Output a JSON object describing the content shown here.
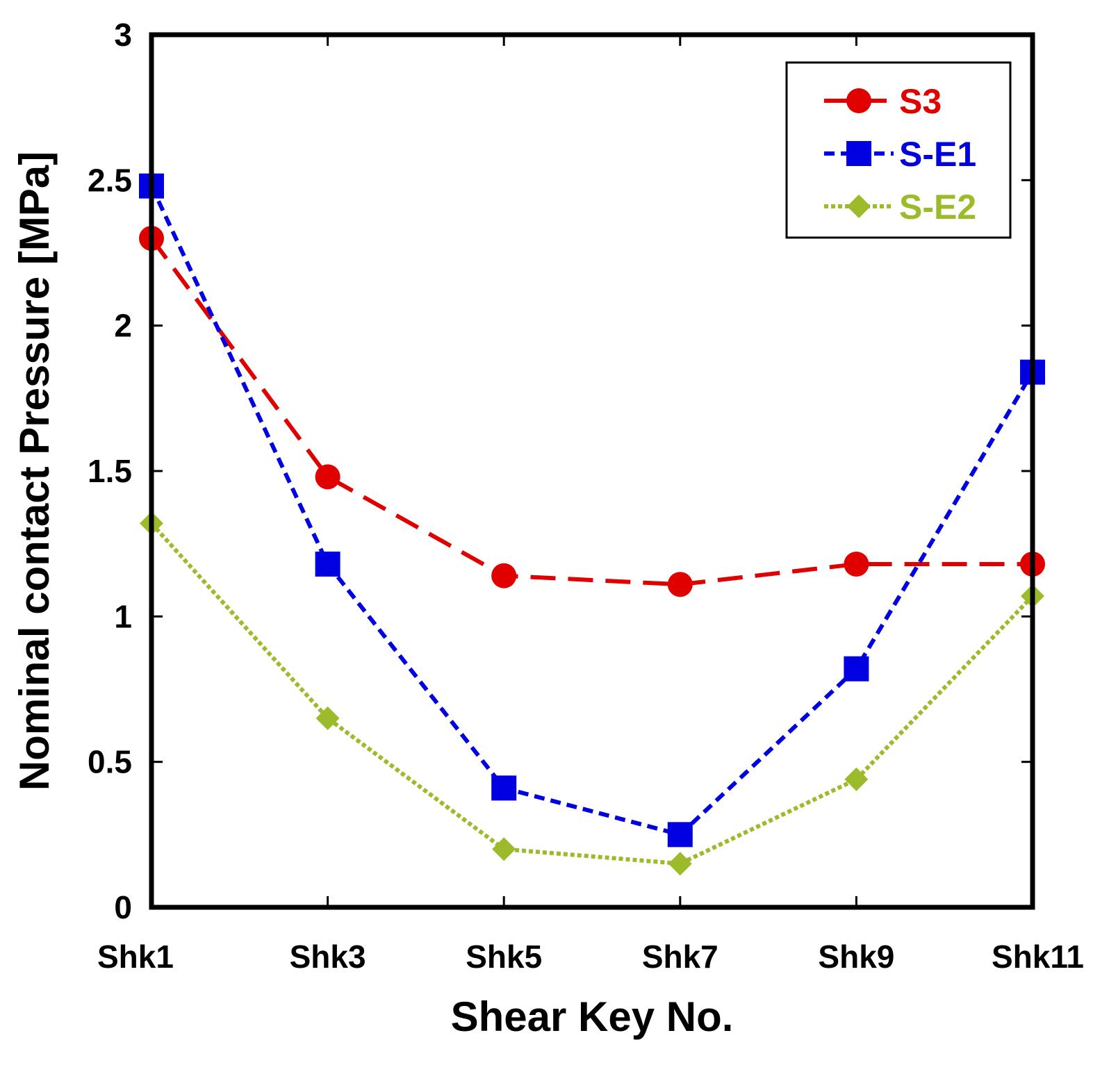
{
  "chart_data": {
    "type": "line",
    "categories": [
      "Shk1",
      "Shk3",
      "Shk5",
      "Shk7",
      "Shk9",
      "Shk11"
    ],
    "xlabel": "Shear Key No.",
    "ylabel": "Nominal contact Pressure [MPa]",
    "ylim": [
      0,
      3
    ],
    "yticks": [
      0,
      0.5,
      1,
      1.5,
      2,
      2.5,
      3
    ],
    "ytick_labels": [
      "0",
      "0.5",
      "1",
      "1.5",
      "2",
      "2.5",
      "3"
    ],
    "grid": false,
    "legend_position": "top-right",
    "series": [
      {
        "name": "S3",
        "color": "#e00000",
        "marker": "circle",
        "dash": "long-dash",
        "values": [
          2.3,
          1.48,
          1.14,
          1.11,
          1.18,
          1.18
        ]
      },
      {
        "name": "S-E1",
        "color": "#0000e0",
        "marker": "square",
        "dash": "short-dash",
        "values": [
          2.48,
          1.18,
          0.41,
          0.25,
          0.82,
          1.84
        ]
      },
      {
        "name": "S-E2",
        "color": "#9cbb2a",
        "marker": "diamond",
        "dash": "dotted",
        "values": [
          1.32,
          0.65,
          0.2,
          0.15,
          0.44,
          1.07
        ]
      }
    ]
  }
}
